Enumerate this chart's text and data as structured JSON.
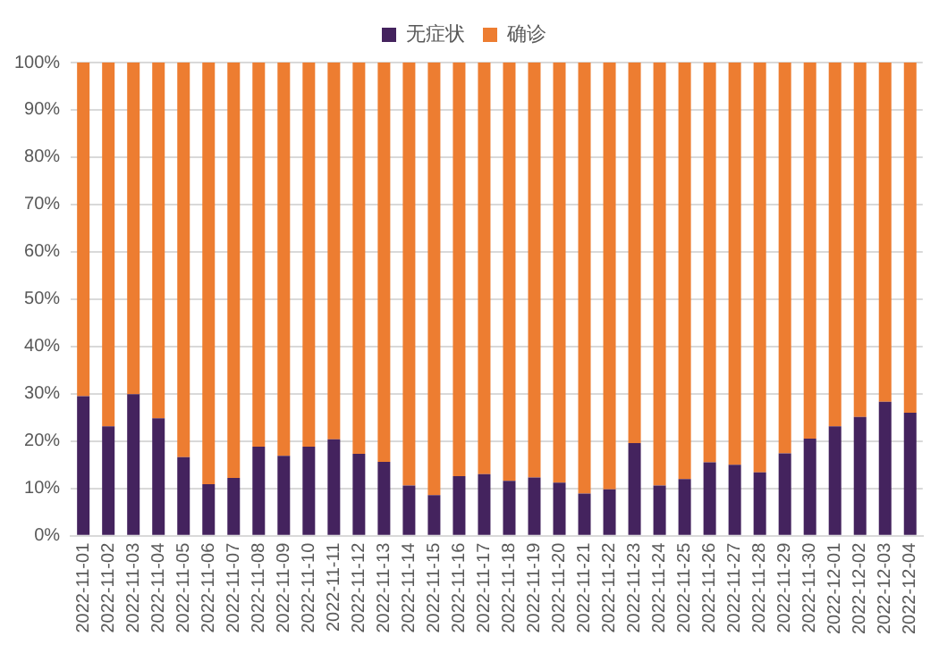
{
  "chart_data": {
    "type": "bar",
    "stacked": true,
    "categories": [
      "2022-11-01",
      "2022-11-02",
      "2022-11-03",
      "2022-11-04",
      "2022-11-05",
      "2022-11-06",
      "2022-11-07",
      "2022-11-08",
      "2022-11-09",
      "2022-11-10",
      "2022-11-11",
      "2022-11-12",
      "2022-11-13",
      "2022-11-14",
      "2022-11-15",
      "2022-11-16",
      "2022-11-17",
      "2022-11-18",
      "2022-11-19",
      "2022-11-20",
      "2022-11-21",
      "2022-11-22",
      "2022-11-23",
      "2022-11-24",
      "2022-11-25",
      "2022-11-26",
      "2022-11-27",
      "2022-11-28",
      "2022-11-29",
      "2022-11-30",
      "2022-12-01",
      "2022-12-02",
      "2022-12-03",
      "2022-12-04"
    ],
    "series": [
      {
        "name": "无症状",
        "color": "#44235e",
        "values": [
          29.5,
          23.1,
          29.9,
          24.8,
          16.6,
          10.9,
          12.2,
          18.8,
          16.9,
          18.8,
          20.4,
          17.3,
          15.6,
          10.6,
          8.6,
          12.6,
          13,
          11.6,
          12.3,
          11.2,
          8.9,
          9.8,
          19.6,
          10.6,
          12,
          15.5,
          15,
          13.4,
          17.4,
          20.5,
          23.1,
          25.1,
          28.3,
          26
        ]
      },
      {
        "name": "确诊",
        "color": "#ed7d31",
        "values": [
          70.5,
          76.9,
          70.1,
          75.2,
          83.4,
          89.1,
          87.8,
          81.2,
          83.1,
          81.2,
          79.6,
          82.7,
          84.4,
          89.4,
          91.4,
          87.4,
          87,
          88.4,
          87.7,
          88.8,
          91.1,
          90.2,
          80.4,
          89.4,
          88,
          84.5,
          85,
          86.6,
          82.6,
          79.5,
          76.9,
          74.9,
          71.7,
          74
        ]
      }
    ],
    "ylim": [
      0,
      100
    ],
    "yticks": [
      {
        "value": 0,
        "label": "0%"
      },
      {
        "value": 10,
        "label": "10%"
      },
      {
        "value": 20,
        "label": "20%"
      },
      {
        "value": 30,
        "label": "30%"
      },
      {
        "value": 40,
        "label": "40%"
      },
      {
        "value": 50,
        "label": "50%"
      },
      {
        "value": 60,
        "label": "60%"
      },
      {
        "value": 70,
        "label": "70%"
      },
      {
        "value": 80,
        "label": "80%"
      },
      {
        "value": 90,
        "label": "90%"
      },
      {
        "value": 100,
        "label": "100%"
      }
    ],
    "grid": "y",
    "legend": "top"
  }
}
